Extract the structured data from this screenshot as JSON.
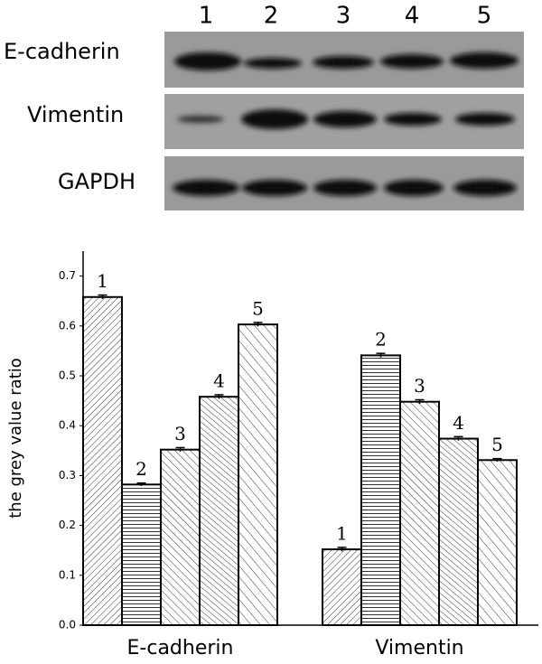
{
  "blot": {
    "lanes": [
      "1",
      "2",
      "3",
      "4",
      "5"
    ],
    "rows": [
      "E-cadherin",
      "Vimentin",
      "GAPDH"
    ]
  },
  "chart_data": {
    "type": "bar",
    "y_label": "the grey value ratio",
    "categories": [
      "E-cadherin",
      "Vimentin"
    ],
    "series": [
      {
        "name": "1",
        "color": "#000000",
        "hatch": "diagonal-up",
        "values": [
          0.658,
          0.152
        ],
        "errors": [
          0.004,
          0.004
        ]
      },
      {
        "name": "2",
        "color": "#000000",
        "hatch": "horizontal",
        "values": [
          0.282,
          0.541
        ],
        "errors": [
          0.003,
          0.004
        ]
      },
      {
        "name": "3",
        "color": "#000000",
        "hatch": "diagonal-down",
        "values": [
          0.352,
          0.448
        ],
        "errors": [
          0.004,
          0.004
        ]
      },
      {
        "name": "4",
        "color": "#000000",
        "hatch": "diagonal-down-fine",
        "values": [
          0.458,
          0.374
        ],
        "errors": [
          0.004,
          0.004
        ]
      },
      {
        "name": "5",
        "color": "#000000",
        "hatch": "diagonal-down-wide",
        "values": [
          0.603,
          0.331
        ],
        "errors": [
          0.004,
          0.003
        ]
      }
    ],
    "ylim": [
      0,
      0.75
    ],
    "yticks": [
      {
        "value": 0,
        "label": "0.0"
      },
      0.1,
      0.2,
      0.3,
      0.4,
      0.5,
      0.6,
      0.7
    ]
  }
}
